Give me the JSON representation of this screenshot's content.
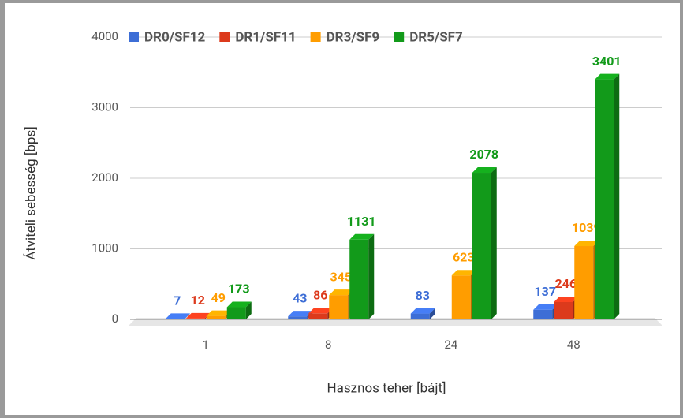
{
  "chart_data": {
    "type": "bar3d",
    "x_label": "Hasznos teher [bájt]",
    "y_label": "Átviteli sebesség [bps]",
    "categories": [
      "1",
      "8",
      "24",
      "48"
    ],
    "series": [
      {
        "name": "DR0/SF12",
        "color": "#3d6ed6",
        "values": [
          7,
          43,
          83,
          137
        ]
      },
      {
        "name": "DR1/SF11",
        "color": "#dc3a1c",
        "values": [
          12,
          86,
          null,
          246
        ]
      },
      {
        "name": "DR3/SF9",
        "color": "#ff9d00",
        "values": [
          49,
          345,
          623,
          1039
        ]
      },
      {
        "name": "DR5/SF7",
        "color": "#129a1a",
        "values": [
          173,
          1131,
          2078,
          3401
        ]
      }
    ],
    "ylim": [
      0,
      4000
    ],
    "yticks": [
      0,
      1000,
      2000,
      3000,
      4000
    ],
    "grid": true,
    "legend": "top"
  }
}
